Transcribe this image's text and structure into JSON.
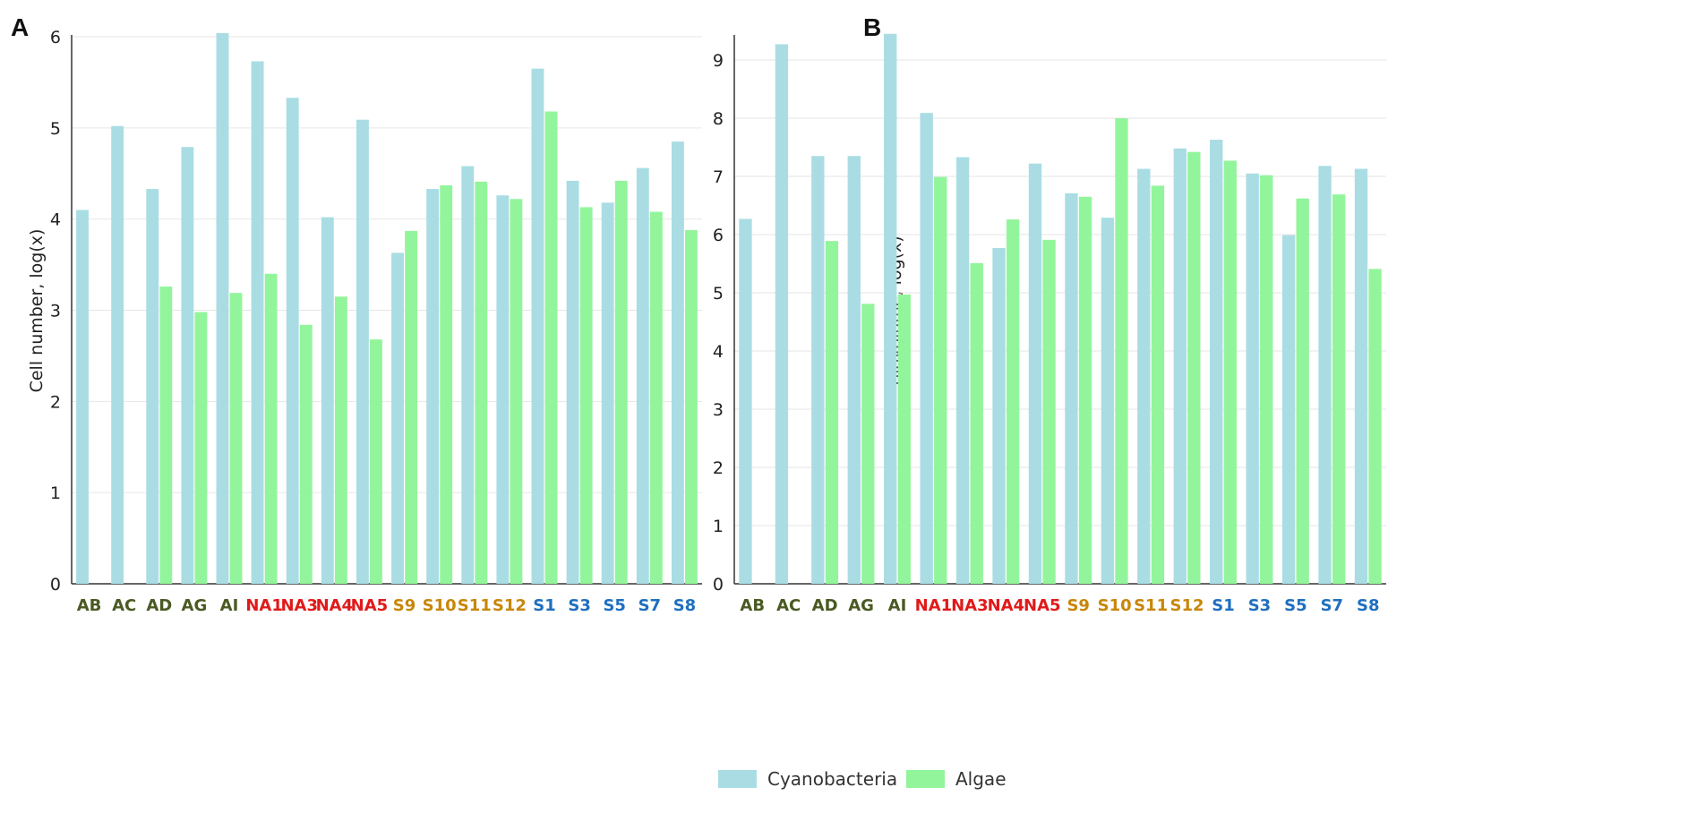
{
  "legend": {
    "items": [
      {
        "label": "Cyanobacteria",
        "color": "#a9dde3"
      },
      {
        "label": "Algae",
        "color": "#93f59b"
      }
    ]
  },
  "chart_data": [
    {
      "panel": "A",
      "type": "bar",
      "ylabel": "Cell number, log(x)",
      "ylim": [
        0,
        6
      ],
      "yticks": [
        "0",
        "1",
        "2",
        "3",
        "4",
        "5",
        "6"
      ],
      "grid": true,
      "categories": [
        "AB",
        "AC",
        "AD",
        "AG",
        "AI",
        "NA1",
        "NA3",
        "NA4",
        "NA5",
        "S9",
        "S10",
        "S11",
        "S12",
        "S1",
        "S3",
        "S5",
        "S7",
        "S8"
      ],
      "category_colors": [
        "#4a5a22",
        "#4a5a22",
        "#4a5a22",
        "#4a5a22",
        "#4a5a22",
        "#e01a1a",
        "#e01a1a",
        "#e01a1a",
        "#e01a1a",
        "#c8860a",
        "#c8860a",
        "#c8860a",
        "#c8860a",
        "#1f6fbf",
        "#1f6fbf",
        "#1f6fbf",
        "#1f6fbf",
        "#1f6fbf"
      ],
      "series": [
        {
          "name": "Cyanobacteria",
          "values": [
            4.1,
            5.02,
            4.33,
            4.79,
            6.04,
            5.73,
            5.33,
            4.02,
            5.09,
            3.63,
            4.33,
            4.58,
            4.26,
            5.65,
            4.42,
            4.18,
            4.56,
            4.85
          ]
        },
        {
          "name": "Algae",
          "values": [
            null,
            null,
            3.26,
            2.98,
            3.19,
            3.4,
            2.84,
            3.15,
            2.68,
            3.87,
            4.37,
            4.41,
            4.22,
            5.18,
            4.13,
            4.42,
            4.08,
            3.88
          ]
        }
      ]
    },
    {
      "panel": "B",
      "type": "bar",
      "ylabel": "Biovolume, log(x)",
      "ylim": [
        0,
        9.4
      ],
      "yticks": [
        "0",
        "1",
        "2",
        "3",
        "4",
        "5",
        "6",
        "7",
        "8",
        "9"
      ],
      "grid": true,
      "categories": [
        "AB",
        "AC",
        "AD",
        "AG",
        "AI",
        "NA1",
        "NA3",
        "NA4",
        "NA5",
        "S9",
        "S10",
        "S11",
        "S12",
        "S1",
        "S3",
        "S5",
        "S7",
        "S8"
      ],
      "category_colors": [
        "#4a5a22",
        "#4a5a22",
        "#4a5a22",
        "#4a5a22",
        "#4a5a22",
        "#e01a1a",
        "#e01a1a",
        "#e01a1a",
        "#e01a1a",
        "#c8860a",
        "#c8860a",
        "#c8860a",
        "#c8860a",
        "#1f6fbf",
        "#1f6fbf",
        "#1f6fbf",
        "#1f6fbf",
        "#1f6fbf"
      ],
      "series": [
        {
          "name": "Cyanobacteria",
          "values": [
            6.27,
            9.27,
            7.35,
            7.35,
            9.45,
            8.09,
            7.33,
            5.77,
            7.22,
            6.71,
            6.29,
            7.13,
            7.48,
            7.63,
            7.05,
            5.99,
            7.18,
            7.13
          ]
        },
        {
          "name": "Algae",
          "values": [
            null,
            null,
            5.89,
            4.81,
            4.97,
            6.99,
            5.51,
            6.26,
            5.91,
            6.65,
            8.0,
            6.84,
            7.42,
            7.27,
            7.02,
            6.62,
            6.69,
            5.41
          ]
        }
      ]
    }
  ]
}
